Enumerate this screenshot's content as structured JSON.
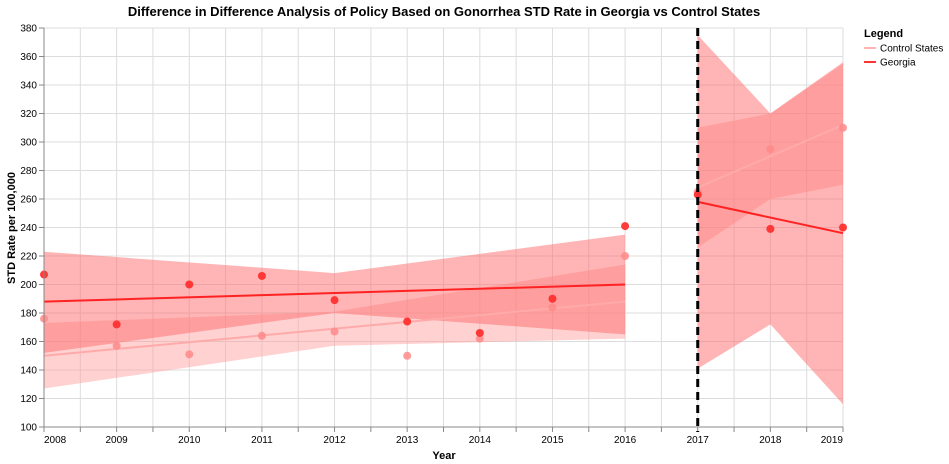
{
  "chart_data": {
    "type": "scatter",
    "title": "Difference in Difference Analysis of Policy Based on Gonorrhea STD Rate in Georgia vs Control States",
    "xlabel": "Year",
    "ylabel": "STD Rate per 100,000",
    "xlim": [
      2008,
      2019
    ],
    "ylim": [
      100,
      380
    ],
    "x_ticks": [
      "2008",
      "2009",
      "2010",
      "2011",
      "2012",
      "2013",
      "2014",
      "2015",
      "2016",
      "2017",
      "2018",
      "2019"
    ],
    "y_ticks": [
      "100",
      "120",
      "140",
      "160",
      "180",
      "200",
      "220",
      "240",
      "260",
      "280",
      "300",
      "320",
      "340",
      "360",
      "380"
    ],
    "grid": true,
    "policy_year": 2017,
    "legend": {
      "title": "Legend",
      "position": "top-right",
      "items": [
        {
          "label": "Control States",
          "color": "#ffb3b3"
        },
        {
          "label": "Georgia",
          "color": "#ff3333"
        }
      ]
    },
    "series": [
      {
        "name": "Control States",
        "color": "#ff9999",
        "points": [
          {
            "x": 2008,
            "y": 176
          },
          {
            "x": 2009,
            "y": 157
          },
          {
            "x": 2010,
            "y": 151
          },
          {
            "x": 2011,
            "y": 164
          },
          {
            "x": 2012,
            "y": 167
          },
          {
            "x": 2013,
            "y": 150
          },
          {
            "x": 2014,
            "y": 162
          },
          {
            "x": 2015,
            "y": 184
          },
          {
            "x": 2016,
            "y": 220
          },
          {
            "x": 2017,
            "y": 265
          },
          {
            "x": 2018,
            "y": 295
          },
          {
            "x": 2019,
            "y": 310
          }
        ],
        "fits": [
          {
            "x0": 2008,
            "x1": 2016,
            "line": [
              150,
              188
            ],
            "band": [
              {
                "x": 2008,
                "lo": 127,
                "hi": 173
              },
              {
                "x": 2012,
                "lo": 157,
                "hi": 181
              },
              {
                "x": 2016,
                "lo": 162,
                "hi": 214
              }
            ]
          },
          {
            "x0": 2017,
            "x1": 2019,
            "line": [
              268,
              312
            ],
            "band": [
              {
                "x": 2017,
                "lo": 226,
                "hi": 310
              },
              {
                "x": 2018,
                "lo": 260,
                "hi": 320
              },
              {
                "x": 2019,
                "lo": 270,
                "hi": 355
              }
            ]
          }
        ]
      },
      {
        "name": "Georgia",
        "color": "#ff2222",
        "points": [
          {
            "x": 2008,
            "y": 207
          },
          {
            "x": 2009,
            "y": 172
          },
          {
            "x": 2010,
            "y": 200
          },
          {
            "x": 2011,
            "y": 206
          },
          {
            "x": 2012,
            "y": 189
          },
          {
            "x": 2013,
            "y": 174
          },
          {
            "x": 2014,
            "y": 166
          },
          {
            "x": 2015,
            "y": 190
          },
          {
            "x": 2016,
            "y": 241
          },
          {
            "x": 2017,
            "y": 263
          },
          {
            "x": 2018,
            "y": 239
          },
          {
            "x": 2019,
            "y": 240
          }
        ],
        "fits": [
          {
            "x0": 2008,
            "x1": 2016,
            "line": [
              188,
              200
            ],
            "band": [
              {
                "x": 2008,
                "lo": 152,
                "hi": 223
              },
              {
                "x": 2012,
                "lo": 180,
                "hi": 208
              },
              {
                "x": 2016,
                "lo": 165,
                "hi": 235
              }
            ]
          },
          {
            "x0": 2017,
            "x1": 2019,
            "line": [
              258,
              236
            ],
            "band": [
              {
                "x": 2017,
                "lo": 141,
                "hi": 375
              },
              {
                "x": 2018,
                "lo": 172,
                "hi": 320
              },
              {
                "x": 2019,
                "lo": 116,
                "hi": 356
              }
            ]
          }
        ]
      }
    ]
  }
}
